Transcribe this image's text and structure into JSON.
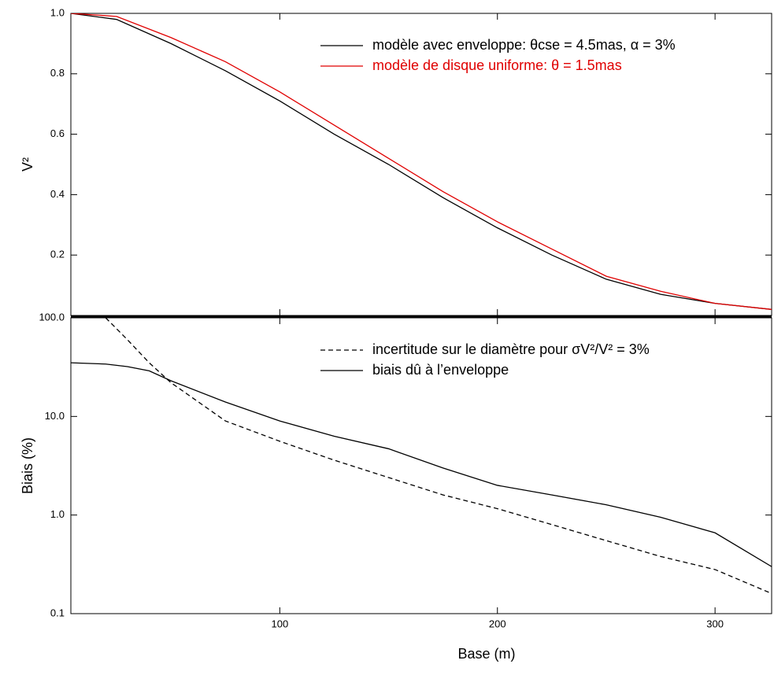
{
  "chart_data": [
    {
      "type": "line",
      "ylabel": "V²",
      "legend": "top-right",
      "x": [
        4,
        25,
        50,
        75,
        100,
        125,
        150,
        175,
        200,
        225,
        250,
        275,
        300,
        326
      ],
      "xlim": [
        4,
        326
      ],
      "ylim": [
        0,
        1
      ],
      "yticks": [
        {
          "value": 0.2,
          "label": "0.2"
        },
        {
          "value": 0.4,
          "label": "0.4"
        },
        {
          "value": 0.6,
          "label": "0.6"
        },
        {
          "value": 0.8,
          "label": "0.8"
        },
        {
          "value": 1,
          "label": "1.0"
        }
      ],
      "series": [
        {
          "name": "modèle avec enveloppe: θcse = 4.5mas, α = 3%",
          "color": "#000000",
          "linestyle": "solid",
          "values": [
            1.0,
            0.98,
            0.9,
            0.81,
            0.71,
            0.6,
            0.5,
            0.39,
            0.29,
            0.2,
            0.12,
            0.07,
            0.04,
            0.02
          ]
        },
        {
          "name": "modèle de disque uniforme: θ = 1.5mas",
          "color": "#e00000",
          "linestyle": "solid",
          "values": [
            1.0,
            0.99,
            0.92,
            0.84,
            0.74,
            0.63,
            0.52,
            0.41,
            0.31,
            0.22,
            0.13,
            0.08,
            0.04,
            0.02
          ]
        }
      ]
    },
    {
      "type": "line",
      "xlabel": "Base (m)",
      "ylabel": "Biais (%)",
      "ylog": true,
      "legend": "top-right",
      "x": [
        4,
        20,
        30,
        40,
        50,
        75,
        100,
        125,
        150,
        175,
        200,
        225,
        250,
        275,
        300,
        326
      ],
      "xlim": [
        4,
        326
      ],
      "xticks": [
        100,
        200,
        300
      ],
      "ylim": [
        0.1,
        100
      ],
      "yticks": [
        0.1,
        {
          "value": 1,
          "label": "1.0"
        },
        {
          "value": 10,
          "label": "10.0"
        },
        {
          "value": 100,
          "label": "100.0"
        }
      ],
      "series": [
        {
          "name": "incertitude sur le diamètre pour σV²/V² = 3%",
          "color": "#000000",
          "linestyle": "dashed",
          "values": [
            null,
            100,
            60,
            35,
            22,
            9,
            5.6,
            3.6,
            2.4,
            1.6,
            1.16,
            0.8,
            0.55,
            0.38,
            0.28,
            0.16
          ]
        },
        {
          "name": "biais dû à l’enveloppe",
          "color": "#000000",
          "linestyle": "solid",
          "values": [
            35,
            34,
            32,
            29,
            23,
            14,
            9.0,
            6.3,
            4.7,
            3.0,
            2.0,
            1.6,
            1.27,
            0.95,
            0.66,
            0.3
          ]
        }
      ]
    }
  ]
}
